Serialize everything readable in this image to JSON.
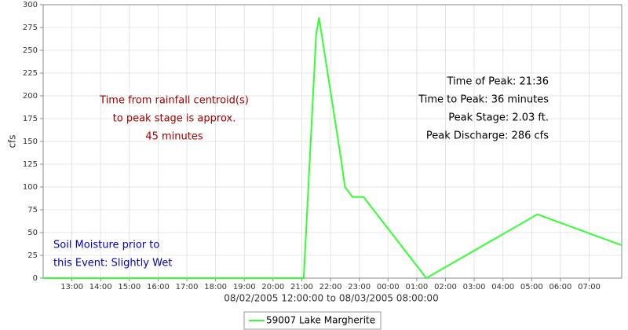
{
  "chart_data": {
    "type": "line",
    "x_label": "08/02/2005 12:00:00 to 08/03/2005 08:00:00",
    "y_label": "cfs",
    "x": [
      "12:00",
      "21:04",
      "21:30",
      "21:36",
      "22:23",
      "22:30",
      "22:46",
      "23:09",
      "01:20",
      "05:12",
      "08:08"
    ],
    "series": [
      {
        "name": "59007 Lake Margherite",
        "color": "#33ff33",
        "values": [
          0,
          0,
          267,
          286,
          127,
          100,
          89,
          89,
          0,
          70,
          36
        ]
      }
    ],
    "xlim": [
      "12:00",
      "08:08"
    ],
    "xticks": [
      "13:00",
      "14:00",
      "15:00",
      "16:00",
      "17:00",
      "18:00",
      "19:00",
      "20:00",
      "21:00",
      "22:00",
      "23:00",
      "00:00",
      "01:00",
      "02:00",
      "03:00",
      "04:00",
      "05:00",
      "06:00",
      "07:00"
    ],
    "ylim": [
      0,
      300
    ],
    "yticks": [
      0,
      25,
      50,
      75,
      100,
      125,
      150,
      175,
      200,
      225,
      250,
      275,
      300
    ],
    "grid": true,
    "annotations": {
      "centroid": [
        "Time from rainfall centroid(s)",
        "to peak stage is approx.",
        "45 minutes"
      ],
      "peak": [
        "Time of Peak: 21:36",
        "Time to Peak: 36 minutes",
        "Peak Stage: 2.03 ft.",
        "Peak Discharge: 286 cfs"
      ],
      "soil": [
        "Soil Moisture prior to",
        "this Event: Slightly Wet"
      ]
    }
  }
}
